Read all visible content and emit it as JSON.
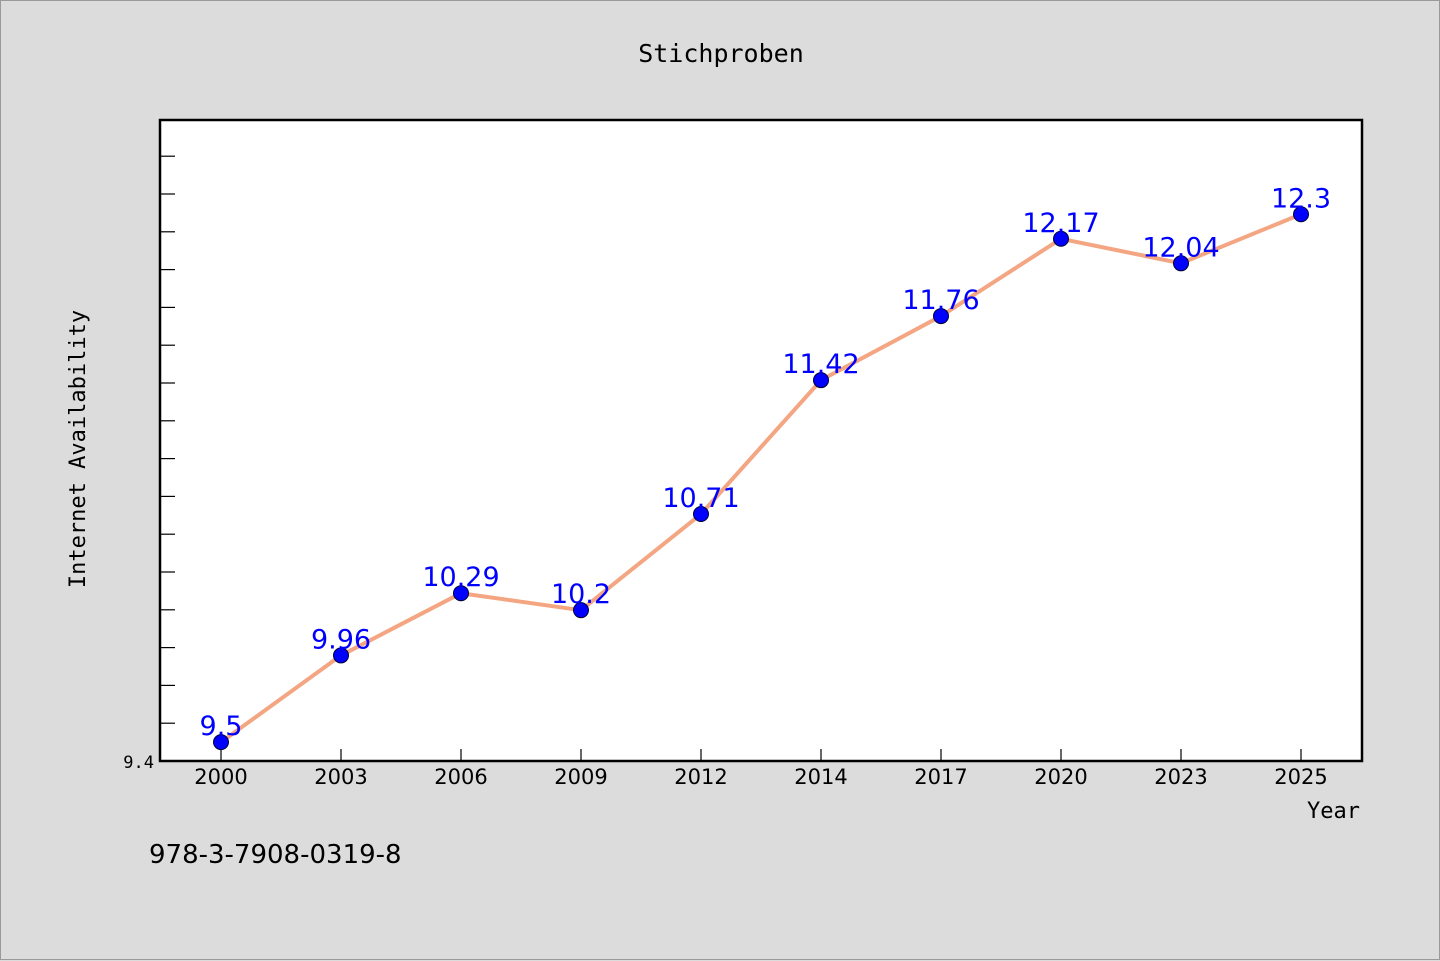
{
  "chart_data": {
    "type": "line",
    "title": "Stichproben",
    "xlabel": "Year",
    "ylabel": "Internet Availability",
    "categories": [
      "2000",
      "2003",
      "2006",
      "2009",
      "2012",
      "2014",
      "2017",
      "2020",
      "2023",
      "2025"
    ],
    "series": [
      {
        "values": [
          9.5,
          9.96,
          10.29,
          10.2,
          10.71,
          11.42,
          11.76,
          12.17,
          12.04,
          12.3
        ],
        "line_color": "#f4a582",
        "marker_color": "#0000ff",
        "label_color": "#0000ff"
      }
    ],
    "ylim": [
      9.4,
      12.8
    ],
    "ytick_labels": [
      "9.4"
    ],
    "grid": false,
    "legend": "none"
  },
  "annotation": "978-3-7908-0319-8"
}
